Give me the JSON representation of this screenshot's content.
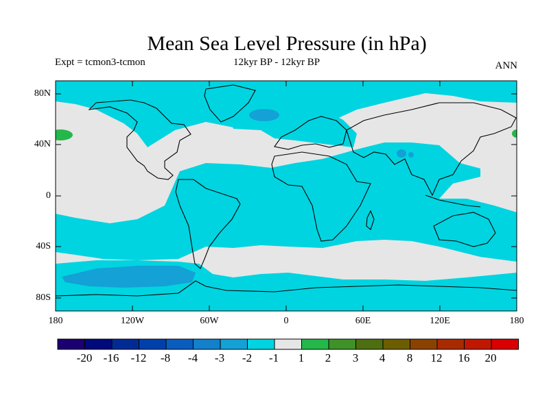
{
  "title": "Mean Sea Level Pressure (in hPa)",
  "subtitle_left": "Expt = tcmon3-tcmon",
  "subtitle_center": "12kyr BP - 12kyr BP",
  "subtitle_right": "ANN",
  "y_ticks": [
    "80N",
    "40N",
    "0",
    "40S",
    "80S"
  ],
  "x_ticks": [
    "180",
    "120W",
    "60W",
    "0",
    "60E",
    "120E",
    "180"
  ],
  "colorbar": {
    "labels": [
      "-20",
      "-16",
      "-12",
      "-8",
      "-4",
      "-3",
      "-2",
      "-1",
      "1",
      "2",
      "3",
      "4",
      "8",
      "12",
      "16",
      "20"
    ],
    "colors": [
      "#1a0070",
      "#000a7a",
      "#002b94",
      "#0040aa",
      "#0a5cbe",
      "#1380cc",
      "#13a1d6",
      "#00d4e0",
      "#e6e6e6",
      "#24b84a",
      "#3e9228",
      "#4e6e12",
      "#6c5e00",
      "#8a4200",
      "#a82a00",
      "#c01800",
      "#d80000"
    ]
  },
  "map_colors": {
    "ocean_neutral": "#e6e6e6",
    "minus1_minus2": "#00d4e0",
    "minus2_minus3": "#13a1d6",
    "plus1_plus2": "#24b84a",
    "coast": "#000000"
  }
}
